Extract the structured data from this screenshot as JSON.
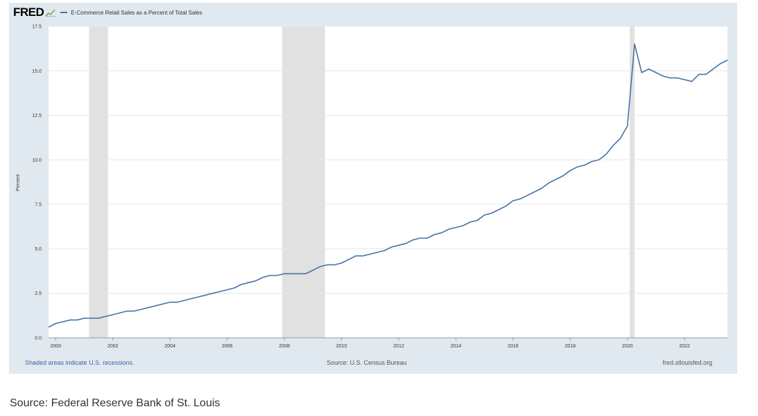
{
  "header": {
    "logo_text": "FRED",
    "logo_icon": "fred-graph-icon",
    "series_label": "E-Commerce Retail Sales as a Percent of Total Sales"
  },
  "footer": {
    "recession_note": "Shaded areas indicate U.S. recessions.",
    "source_note": "Source: U.S. Census Bureau",
    "url": "fred.stlouisfed.org"
  },
  "page_source": "Source: Federal Reserve Bank of St. Louis",
  "colors": {
    "panel_bg": "#e1e9f0",
    "plot_bg": "#ffffff",
    "line": "#4572a7",
    "recession": "#e1e1e1",
    "link": "#3a66a6"
  },
  "chart_data": {
    "type": "line",
    "title": "E-Commerce Retail Sales as a Percent of Total Sales",
    "xlabel": "",
    "ylabel": "Percent",
    "xlim": [
      1999.75,
      2023.5
    ],
    "ylim": [
      0,
      17.5
    ],
    "grid": true,
    "legend_position": "top-left",
    "x_ticks": [
      2000,
      2002,
      2004,
      2006,
      2008,
      2010,
      2012,
      2014,
      2016,
      2018,
      2020,
      2022
    ],
    "x_tick_labels": [
      "2000",
      "2002",
      "2004",
      "2006",
      "2008",
      "2010",
      "2012",
      "2014",
      "2016",
      "2018",
      "2020",
      "2022"
    ],
    "y_ticks": [
      0,
      2.5,
      5,
      7.5,
      10,
      12.5,
      15,
      17.5
    ],
    "y_tick_labels": [
      "0.0",
      "2.5",
      "5.0",
      "7.5",
      "10.0",
      "12.5",
      "15.0",
      "17.5"
    ],
    "recessions": [
      [
        2001.17,
        2001.83
      ],
      [
        2007.92,
        2009.42
      ],
      [
        2020.08,
        2020.25
      ]
    ],
    "series": [
      {
        "x": [
          1999.75,
          2000.0,
          2000.25,
          2000.5,
          2000.75,
          2001.0,
          2001.25,
          2001.5,
          2001.75,
          2002.0,
          2002.25,
          2002.5,
          2002.75,
          2003.0,
          2003.25,
          2003.5,
          2003.75,
          2004.0,
          2004.25,
          2004.5,
          2004.75,
          2005.0,
          2005.25,
          2005.5,
          2005.75,
          2006.0,
          2006.25,
          2006.5,
          2006.75,
          2007.0,
          2007.25,
          2007.5,
          2007.75,
          2008.0,
          2008.25,
          2008.5,
          2008.75,
          2009.0,
          2009.25,
          2009.5,
          2009.75,
          2010.0,
          2010.25,
          2010.5,
          2010.75,
          2011.0,
          2011.25,
          2011.5,
          2011.75,
          2012.0,
          2012.25,
          2012.5,
          2012.75,
          2013.0,
          2013.25,
          2013.5,
          2013.75,
          2014.0,
          2014.25,
          2014.5,
          2014.75,
          2015.0,
          2015.25,
          2015.5,
          2015.75,
          2016.0,
          2016.25,
          2016.5,
          2016.75,
          2017.0,
          2017.25,
          2017.5,
          2017.75,
          2018.0,
          2018.25,
          2018.5,
          2018.75,
          2019.0,
          2019.25,
          2019.5,
          2019.75,
          2020.0,
          2020.25,
          2020.5,
          2020.75,
          2021.0,
          2021.25,
          2021.5,
          2021.75,
          2022.0,
          2022.25,
          2022.5,
          2022.75,
          2023.0,
          2023.25,
          2023.5
        ],
        "values": [
          0.6,
          0.8,
          0.9,
          1.0,
          1.0,
          1.1,
          1.1,
          1.1,
          1.2,
          1.3,
          1.4,
          1.5,
          1.5,
          1.6,
          1.7,
          1.8,
          1.9,
          2.0,
          2.0,
          2.1,
          2.2,
          2.3,
          2.4,
          2.5,
          2.6,
          2.7,
          2.8,
          3.0,
          3.1,
          3.2,
          3.4,
          3.5,
          3.5,
          3.6,
          3.6,
          3.6,
          3.6,
          3.8,
          4.0,
          4.1,
          4.1,
          4.2,
          4.4,
          4.6,
          4.6,
          4.7,
          4.8,
          4.9,
          5.1,
          5.2,
          5.3,
          5.5,
          5.6,
          5.6,
          5.8,
          5.9,
          6.1,
          6.2,
          6.3,
          6.5,
          6.6,
          6.9,
          7.0,
          7.2,
          7.4,
          7.7,
          7.8,
          8.0,
          8.2,
          8.4,
          8.7,
          8.9,
          9.1,
          9.4,
          9.6,
          9.7,
          9.9,
          10.0,
          10.3,
          10.8,
          11.2,
          11.9,
          16.5,
          14.9,
          15.1,
          14.9,
          14.7,
          14.6,
          14.6,
          14.5,
          14.4,
          14.8,
          14.8,
          15.1,
          15.4,
          15.6
        ]
      }
    ]
  }
}
